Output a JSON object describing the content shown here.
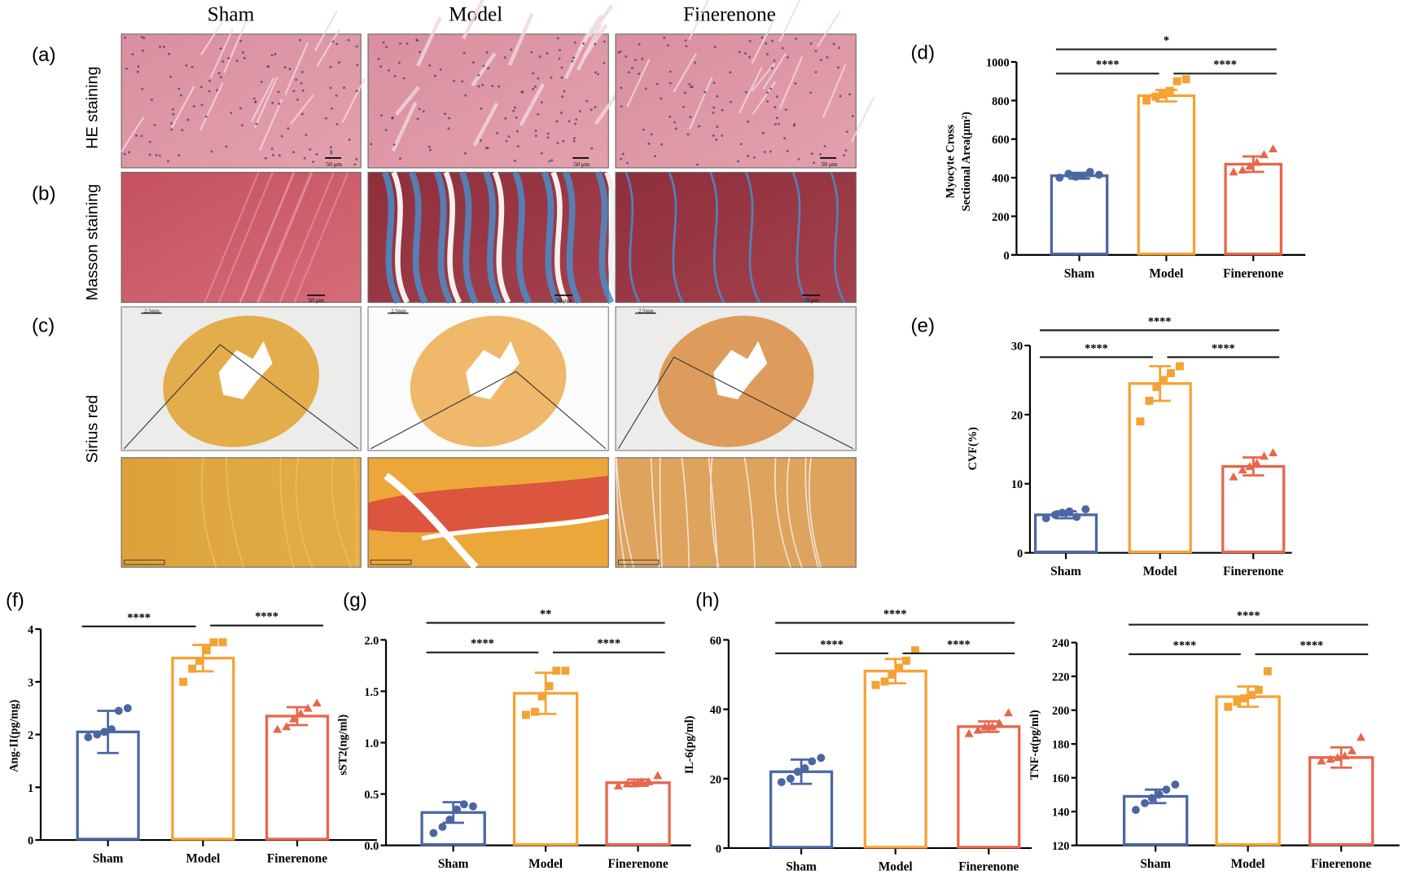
{
  "columns": [
    "Sham",
    "Model",
    "Finerenone"
  ],
  "rows": {
    "he": "HE staining",
    "masson": "Masson staining",
    "sirius": "Sirius red"
  },
  "panel_labels": {
    "a": "(a)",
    "b": "(b)",
    "c": "(c)",
    "d": "(d)",
    "e": "(e)",
    "f": "(f)",
    "g": "(g)",
    "h": "(h)"
  },
  "scale_bars": {
    "micro": "50 μm",
    "macro": "2.5mm"
  },
  "colors": {
    "sham": "#4b67a3",
    "model": "#f5a234",
    "finerenone": "#e8664a"
  },
  "chart_data": [
    {
      "panel": "d",
      "type": "bar",
      "ylabel": [
        "Myocyte Cross",
        "Sectional Area(μm²)"
      ],
      "categories": [
        "Sham",
        "Model",
        "Finerenone"
      ],
      "values": [
        410,
        825,
        470
      ],
      "error": [
        15,
        30,
        40
      ],
      "points": [
        [
          400,
          420,
          405,
          410,
          430,
          415
        ],
        [
          800,
          820,
          830,
          850,
          900,
          910
        ],
        [
          430,
          440,
          460,
          480,
          520,
          550
        ]
      ],
      "ylim": [
        0,
        1000
      ],
      "yticks": [
        0,
        200,
        400,
        600,
        800,
        1000
      ],
      "significance": [
        {
          "from": 0,
          "to": 1,
          "label": "****"
        },
        {
          "from": 1,
          "to": 2,
          "label": "****"
        },
        {
          "from": 0,
          "to": 2,
          "label": "*"
        }
      ]
    },
    {
      "panel": "e",
      "type": "bar",
      "ylabel": [
        "CVF(%)"
      ],
      "categories": [
        "Sham",
        "Model",
        "Finerenone"
      ],
      "values": [
        5.5,
        24.5,
        12.5
      ],
      "error": [
        0.5,
        2.5,
        1.3
      ],
      "points": [
        [
          5.0,
          5.5,
          5.8,
          6.0,
          5.2,
          6.3
        ],
        [
          19,
          22,
          24,
          25,
          26,
          27
        ],
        [
          11,
          12,
          12.5,
          13,
          14,
          14.5
        ]
      ],
      "ylim": [
        0,
        30
      ],
      "yticks": [
        0,
        10,
        20,
        30
      ],
      "significance": [
        {
          "from": 0,
          "to": 1,
          "label": "****"
        },
        {
          "from": 1,
          "to": 2,
          "label": "****"
        },
        {
          "from": 0,
          "to": 2,
          "label": "****"
        }
      ]
    },
    {
      "panel": "f",
      "type": "bar",
      "ylabel": [
        "Ang-II(pg/mg)"
      ],
      "categories": [
        "Sham",
        "Model",
        "Finerenone"
      ],
      "values": [
        2.05,
        3.45,
        2.35
      ],
      "error": [
        0.4,
        0.25,
        0.17
      ],
      "points": [
        [
          1.95,
          2.0,
          2.05,
          2.1,
          2.45,
          2.5
        ],
        [
          3.0,
          3.25,
          3.4,
          3.6,
          3.75,
          3.75
        ],
        [
          2.1,
          2.15,
          2.3,
          2.4,
          2.5,
          2.6
        ]
      ],
      "ylim": [
        0,
        4
      ],
      "yticks": [
        0,
        1,
        2,
        3,
        4
      ],
      "significance": [
        {
          "from": 0,
          "to": 1,
          "label": "****"
        },
        {
          "from": 1,
          "to": 2,
          "label": "****"
        }
      ]
    },
    {
      "panel": "g",
      "type": "bar",
      "ylabel": [
        "sST2(ng/ml)"
      ],
      "categories": [
        "Sham",
        "Model",
        "Finerenone"
      ],
      "values": [
        0.32,
        1.48,
        0.61
      ],
      "error": [
        0.1,
        0.2,
        0.03
      ],
      "points": [
        [
          0.12,
          0.18,
          0.25,
          0.35,
          0.4,
          0.38
        ],
        [
          1.27,
          1.3,
          1.45,
          1.55,
          1.7,
          1.7
        ],
        [
          0.58,
          0.6,
          0.6,
          0.62,
          0.62,
          0.68
        ]
      ],
      "ylim": [
        0,
        2.0
      ],
      "yticks": [
        0.0,
        0.5,
        1.0,
        1.5,
        2.0
      ],
      "ytick_labels": [
        "0.0",
        "0.5",
        "1.0",
        "1.5",
        "2.0"
      ],
      "significance": [
        {
          "from": 0,
          "to": 1,
          "label": "****"
        },
        {
          "from": 1,
          "to": 2,
          "label": "****"
        },
        {
          "from": 0,
          "to": 2,
          "label": "**"
        }
      ]
    },
    {
      "panel": "h",
      "type": "bar",
      "ylabel": [
        "IL-6(pg/ml)"
      ],
      "categories": [
        "Sham",
        "Model",
        "Finerenone"
      ],
      "values": [
        22,
        51,
        35
      ],
      "error": [
        3.5,
        3.5,
        1.5
      ],
      "points": [
        [
          19,
          20,
          22,
          23,
          25,
          26
        ],
        [
          47,
          48,
          50,
          52,
          54,
          57
        ],
        [
          33,
          34,
          35,
          35,
          36,
          39
        ]
      ],
      "ylim": [
        0,
        60
      ],
      "yticks": [
        0,
        20,
        40,
        60
      ],
      "significance": [
        {
          "from": 0,
          "to": 1,
          "label": "****"
        },
        {
          "from": 1,
          "to": 2,
          "label": "****"
        },
        {
          "from": 0,
          "to": 2,
          "label": "****"
        }
      ]
    },
    {
      "panel": "h2",
      "type": "bar",
      "ylabel": [
        "TNF-α(pg/ml)"
      ],
      "categories": [
        "Sham",
        "Model",
        "Finerenone"
      ],
      "values": [
        149,
        208,
        172
      ],
      "error": [
        4,
        6,
        6
      ],
      "points": [
        [
          141,
          145,
          148,
          150,
          153,
          156
        ],
        [
          202,
          205,
          207,
          209,
          212,
          223
        ],
        [
          170,
          171,
          172,
          173,
          176,
          184
        ]
      ],
      "ylim": [
        120,
        240
      ],
      "yticks": [
        120,
        140,
        160,
        180,
        200,
        220,
        240
      ],
      "significance": [
        {
          "from": 0,
          "to": 1,
          "label": "****"
        },
        {
          "from": 1,
          "to": 2,
          "label": "****"
        },
        {
          "from": 0,
          "to": 2,
          "label": "****"
        }
      ]
    }
  ]
}
